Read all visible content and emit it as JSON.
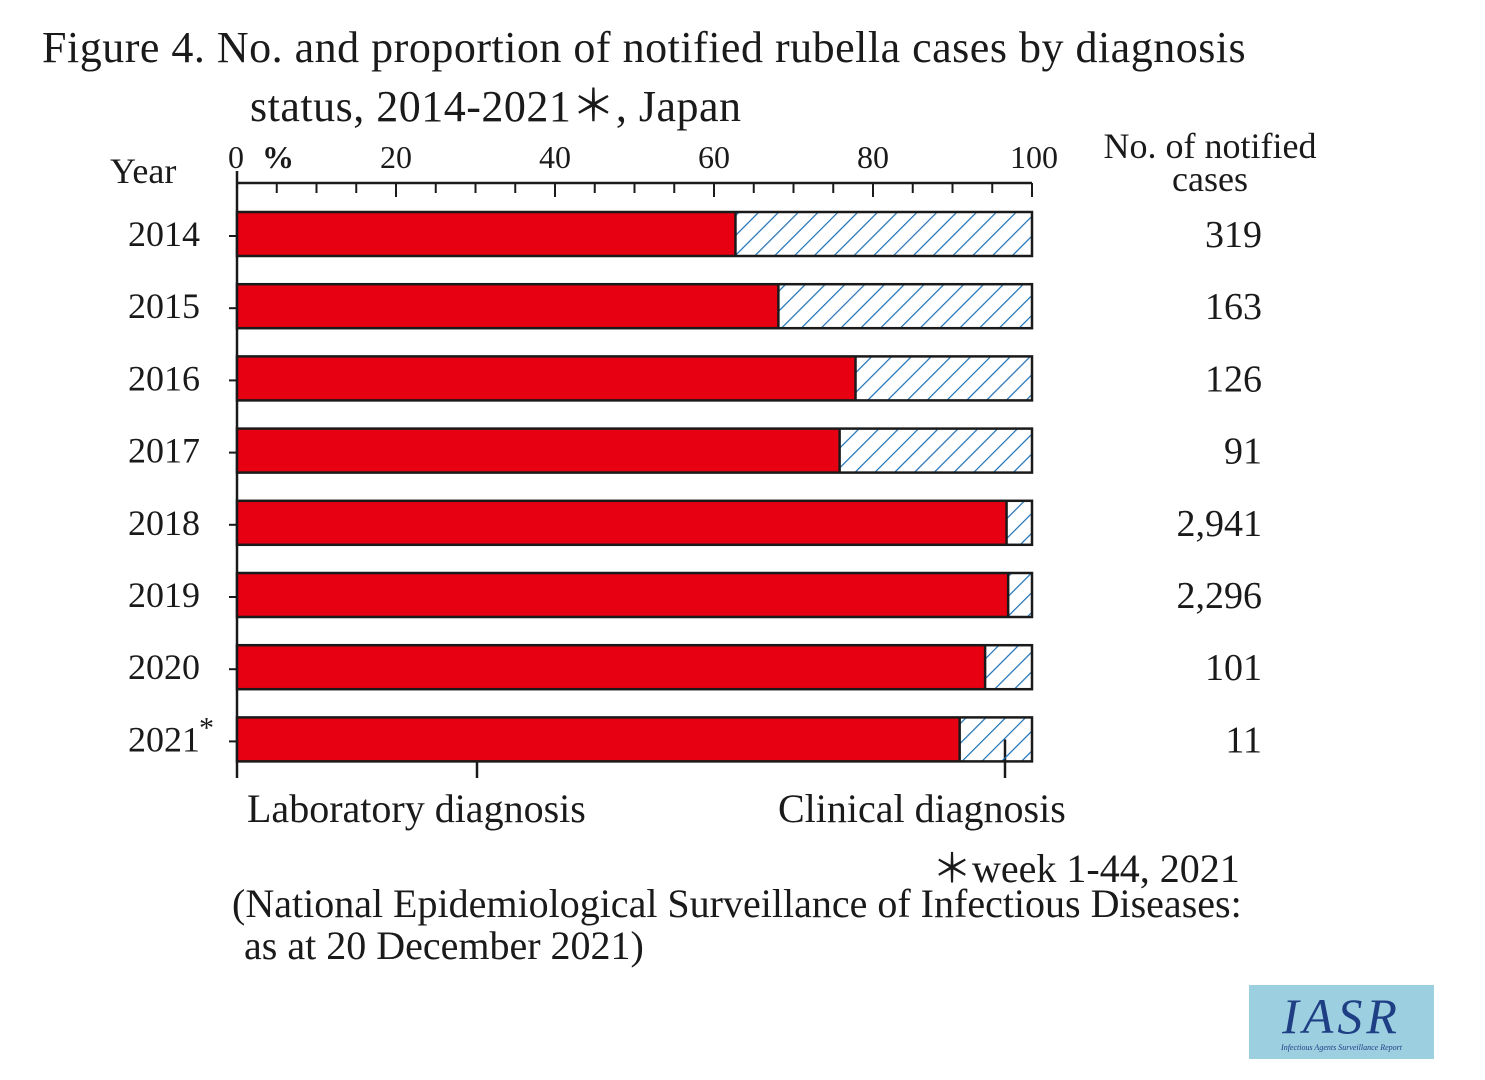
{
  "chart_data": {
    "type": "bar",
    "orientation": "horizontal",
    "stacked": true,
    "title": "Figure 4. No. and proportion of notified rubella cases by diagnosis",
    "title_line2": "status, 2014-2021＊, Japan",
    "categories": [
      "2014",
      "2015",
      "2016",
      "2017",
      "2018",
      "2019",
      "2020",
      "2021*"
    ],
    "series": [
      {
        "name": "Laboratory diagnosis",
        "color": "#e60012",
        "pattern": "solid",
        "values": [
          62.7,
          68.1,
          77.8,
          75.8,
          96.8,
          97.0,
          94.1,
          90.9
        ]
      },
      {
        "name": "Clinical diagnosis",
        "color": "#1b6fb5",
        "pattern": "diagonal-hatch",
        "values": [
          37.3,
          31.9,
          22.2,
          24.2,
          3.2,
          3.0,
          5.9,
          9.1
        ]
      }
    ],
    "notified_cases": [
      "319",
      "163",
      "126",
      "91",
      "2,941",
      "2,296",
      "101",
      "11"
    ],
    "xlabel": "%",
    "ylabel": "Year",
    "right_label_line1": "No. of notified",
    "right_label_line2": "cases",
    "xlim": [
      0,
      100
    ],
    "xticks": [
      "0",
      "20",
      "40",
      "60",
      "80",
      "100"
    ],
    "grid": false,
    "legend_position": "bottom"
  },
  "footnote_week": "＊week 1-44, 2021",
  "source_line1": "(National Epidemiological Surveillance of Infectious Diseases:",
  "source_line2": "as at 20 December 2021)",
  "logo": {
    "text": "IASR",
    "subtitle": "Infectious Agents Surveillance Report"
  }
}
